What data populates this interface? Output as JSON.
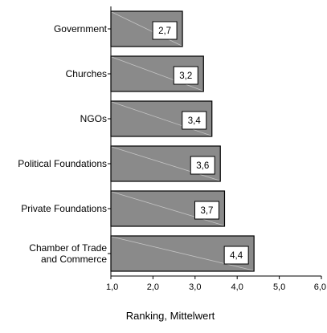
{
  "chart_data": {
    "type": "bar",
    "orientation": "horizontal",
    "title": "",
    "xlabel": "Ranking, Mittelwert",
    "ylabel": "",
    "categories": [
      "Government",
      "Churches",
      "NGOs",
      "Political Foundations",
      "Private Foundations",
      "Chamber of Trade and Commerce"
    ],
    "category_lines": [
      [
        "Government"
      ],
      [
        "Churches"
      ],
      [
        "NGOs"
      ],
      [
        "Political Foundations"
      ],
      [
        "Private Foundations"
      ],
      [
        "Chamber of Trade",
        "and Commerce"
      ]
    ],
    "values": [
      2.7,
      3.2,
      3.4,
      3.6,
      3.7,
      4.4
    ],
    "value_labels": [
      "2,7",
      "3,2",
      "3,4",
      "3,6",
      "3,7",
      "4,4"
    ],
    "xlim": [
      1,
      6
    ],
    "xticks": [
      1,
      2,
      3,
      4,
      5,
      6
    ],
    "xtick_labels": [
      "1,0",
      "2,0",
      "3,0",
      "4,0",
      "5,0",
      "6,0"
    ],
    "grid": false,
    "legend": "none",
    "colors": {
      "bar_fill": "#8a8a8a",
      "bar_stroke": "#000000",
      "label_box": "#ffffff"
    }
  }
}
